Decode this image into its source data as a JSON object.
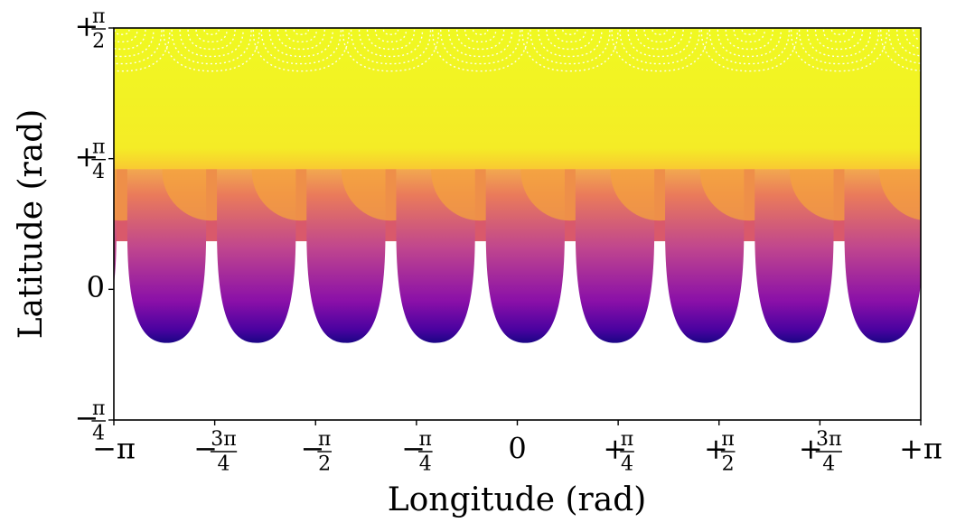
{
  "chart_data": {
    "type": "scatter",
    "title": "",
    "xlabel": "Longitude (rad)",
    "ylabel": "Latitude (rad)",
    "xlim": [
      -3.14159,
      3.14159
    ],
    "ylim": [
      -0.7854,
      1.5708
    ],
    "grid": false,
    "colormap": "plasma",
    "x_ticks": [
      {
        "value": -3.14159,
        "main": "−π",
        "num": "",
        "den": ""
      },
      {
        "value": -2.35619,
        "main": "−",
        "num": "3π",
        "den": "4"
      },
      {
        "value": -1.5708,
        "main": "−",
        "num": "π",
        "den": "2"
      },
      {
        "value": -0.7854,
        "main": "−",
        "num": "π",
        "den": "4"
      },
      {
        "value": 0,
        "main": "0",
        "num": "",
        "den": ""
      },
      {
        "value": 0.7854,
        "main": "+",
        "num": "π",
        "den": "4"
      },
      {
        "value": 1.5708,
        "main": "+",
        "num": "π",
        "den": "2"
      },
      {
        "value": 2.35619,
        "main": "+",
        "num": "3π",
        "den": "4"
      },
      {
        "value": 3.14159,
        "main": "+π",
        "num": "",
        "den": ""
      }
    ],
    "y_ticks": [
      {
        "value": 1.5708,
        "main": "+",
        "num": "π",
        "den": "2"
      },
      {
        "value": 0.7854,
        "main": "+",
        "num": "π",
        "den": "4"
      },
      {
        "value": 0,
        "main": "0",
        "num": "",
        "den": ""
      },
      {
        "value": -0.7854,
        "main": "−",
        "num": "π",
        "den": "4"
      }
    ],
    "lobes": {
      "count": 9,
      "phase_longitude": -2.73,
      "period": 0.698,
      "peak_latitude": 0.3,
      "trough_latitude": -0.3,
      "yellow_band_min_latitude": 0.82
    },
    "colors": {
      "yellow": "#f0f921",
      "light_orange": "#fdb42f",
      "orange": "#e16462",
      "magenta": "#b12a90",
      "purple": "#6a00a8",
      "dark_blue": "#2a0593"
    }
  }
}
